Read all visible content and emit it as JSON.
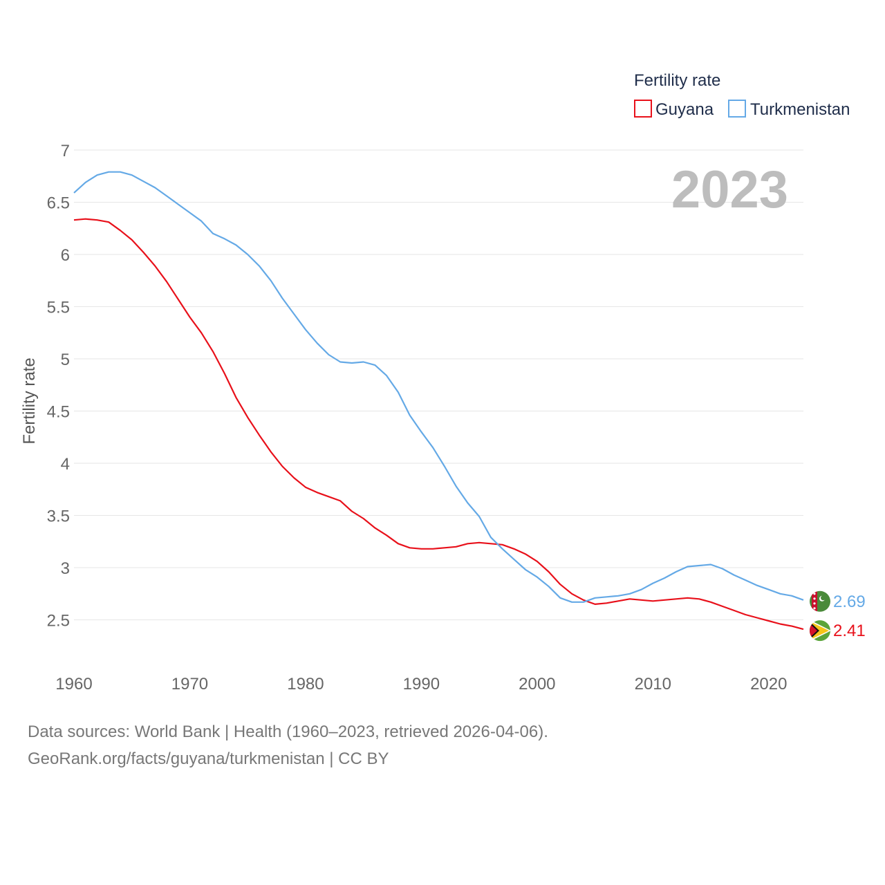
{
  "chart_data": {
    "type": "line",
    "title": "Fertility rate",
    "ylabel": "Fertility rate",
    "xlabel": "",
    "year_stamp": "2023",
    "ylim": [
      2.0,
      7.0
    ],
    "xlim": [
      1960,
      2023
    ],
    "yticks": [
      2.5,
      3,
      3.5,
      4,
      4.5,
      5,
      5.5,
      6,
      6.5,
      7
    ],
    "ytick_labels": [
      "2.5",
      "3",
      "3.5",
      "4",
      "4.5",
      "5",
      "5.5",
      "6",
      "6.5",
      "7"
    ],
    "xticks": [
      1960,
      1970,
      1980,
      1990,
      2000,
      2010,
      2020
    ],
    "xtick_labels": [
      "1960",
      "1970",
      "1980",
      "1990",
      "2000",
      "2010",
      "2020"
    ],
    "grid": true,
    "legend_position": "top-right",
    "legend_title": "Fertility rate",
    "series": [
      {
        "name": "Guyana",
        "color": "#e8101a",
        "end_label": "2.41",
        "flag_icon": "guyana-flag-icon",
        "x": [
          1960,
          1961,
          1962,
          1963,
          1964,
          1965,
          1966,
          1967,
          1968,
          1969,
          1970,
          1971,
          1972,
          1973,
          1974,
          1975,
          1976,
          1977,
          1978,
          1979,
          1980,
          1981,
          1982,
          1983,
          1984,
          1985,
          1986,
          1987,
          1988,
          1989,
          1990,
          1991,
          1992,
          1993,
          1994,
          1995,
          1996,
          1997,
          1998,
          1999,
          2000,
          2001,
          2002,
          2003,
          2004,
          2005,
          2006,
          2007,
          2008,
          2009,
          2010,
          2011,
          2012,
          2013,
          2014,
          2015,
          2016,
          2017,
          2018,
          2019,
          2020,
          2021,
          2022,
          2023
        ],
        "values": [
          6.33,
          6.34,
          6.33,
          6.31,
          6.23,
          6.14,
          6.02,
          5.89,
          5.74,
          5.57,
          5.4,
          5.25,
          5.07,
          4.86,
          4.63,
          4.44,
          4.27,
          4.11,
          3.97,
          3.86,
          3.77,
          3.72,
          3.68,
          3.64,
          3.54,
          3.47,
          3.38,
          3.31,
          3.23,
          3.19,
          3.18,
          3.18,
          3.19,
          3.2,
          3.23,
          3.24,
          3.23,
          3.22,
          3.18,
          3.13,
          3.06,
          2.96,
          2.84,
          2.75,
          2.69,
          2.65,
          2.66,
          2.68,
          2.7,
          2.69,
          2.68,
          2.69,
          2.7,
          2.71,
          2.7,
          2.67,
          2.63,
          2.59,
          2.55,
          2.52,
          2.49,
          2.46,
          2.44,
          2.41
        ]
      },
      {
        "name": "Turkmenistan",
        "color": "#64a9e6",
        "end_label": "2.69",
        "flag_icon": "turkmenistan-flag-icon",
        "x": [
          1960,
          1961,
          1962,
          1963,
          1964,
          1965,
          1966,
          1967,
          1968,
          1969,
          1970,
          1971,
          1972,
          1973,
          1974,
          1975,
          1976,
          1977,
          1978,
          1979,
          1980,
          1981,
          1982,
          1983,
          1984,
          1985,
          1986,
          1987,
          1988,
          1989,
          1990,
          1991,
          1992,
          1993,
          1994,
          1995,
          1996,
          1997,
          1998,
          1999,
          2000,
          2001,
          2002,
          2003,
          2004,
          2005,
          2006,
          2007,
          2008,
          2009,
          2010,
          2011,
          2012,
          2013,
          2014,
          2015,
          2016,
          2017,
          2018,
          2019,
          2020,
          2021,
          2022,
          2023
        ],
        "values": [
          6.59,
          6.69,
          6.76,
          6.79,
          6.79,
          6.76,
          6.7,
          6.64,
          6.56,
          6.48,
          6.4,
          6.32,
          6.2,
          6.15,
          6.09,
          6.0,
          5.89,
          5.75,
          5.58,
          5.43,
          5.28,
          5.15,
          5.04,
          4.97,
          4.96,
          4.97,
          4.94,
          4.84,
          4.68,
          4.46,
          4.3,
          4.15,
          3.97,
          3.78,
          3.62,
          3.49,
          3.29,
          3.18,
          3.08,
          2.98,
          2.91,
          2.82,
          2.71,
          2.67,
          2.67,
          2.71,
          2.72,
          2.73,
          2.75,
          2.79,
          2.85,
          2.9,
          2.96,
          3.01,
          3.02,
          3.03,
          2.99,
          2.93,
          2.88,
          2.83,
          2.79,
          2.75,
          2.73,
          2.69
        ]
      }
    ]
  },
  "source": {
    "line1": "Data sources: World Bank | Health (1960–2023, retrieved 2026-04-06).",
    "line2": "GeoRank.org/facts/guyana/turkmenistan | CC BY"
  }
}
